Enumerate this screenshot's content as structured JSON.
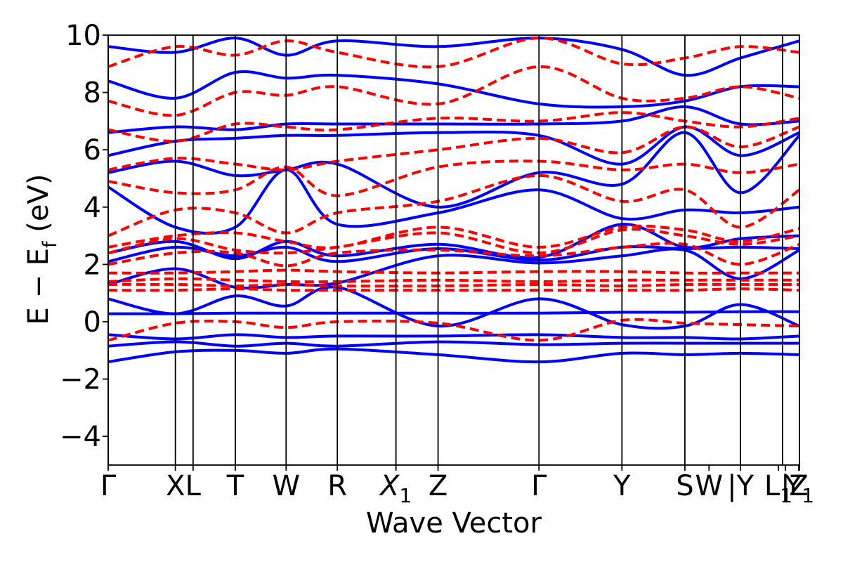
{
  "chart_data": {
    "type": "line",
    "title": "",
    "xlabel": "Wave Vector",
    "ylabel_main": "E − E",
    "ylabel_sub": "f",
    "ylabel_unit": " (eV)",
    "ylim": [
      -5,
      10
    ],
    "yticks": [
      -4,
      -2,
      0,
      2,
      4,
      6,
      8,
      10
    ],
    "ytick_labels": [
      "−4",
      "−2",
      "0",
      "2",
      "4",
      "6",
      "8",
      "10"
    ],
    "xlim": [
      0,
      1
    ],
    "kpoints": [
      {
        "label": "Γ",
        "x": 0.0,
        "sub": ""
      },
      {
        "label": "X",
        "x": 0.0972,
        "sub": ""
      },
      {
        "label": "L",
        "x": 0.1228,
        "sub": ""
      },
      {
        "label": "T",
        "x": 0.1839,
        "sub": ""
      },
      {
        "label": "W",
        "x": 0.2574,
        "sub": ""
      },
      {
        "label": "R",
        "x": 0.3315,
        "sub": ""
      },
      {
        "label": "X",
        "x": 0.4163,
        "sub": "1",
        "italic": true
      },
      {
        "label": "Z",
        "x": 0.4772,
        "sub": ""
      },
      {
        "label": "Γ",
        "x": 0.6232,
        "sub": ""
      },
      {
        "label": "Y",
        "x": 0.7432,
        "sub": ""
      },
      {
        "label": "S",
        "x": 0.8343,
        "sub": ""
      },
      {
        "label": "W",
        "x": 0.8692,
        "sub": ""
      },
      {
        "label": "|Y",
        "x": 0.9147,
        "sub": ""
      },
      {
        "label": "L",
        "x": 0.9695,
        "sub": "1"
      },
      {
        "label": "|",
        "x": 0.9796,
        "sub": ""
      },
      {
        "label": "Z",
        "x": 0.999,
        "sub": ""
      },
      {
        "label": "Y",
        "x": 1.0,
        "sub": "1"
      }
    ],
    "line_x": [
      0.0,
      0.0972,
      0.1228,
      0.1839,
      0.2574,
      0.3315,
      0.4163,
      0.4772,
      0.6232,
      0.7432,
      0.8343,
      0.9147,
      0.9756,
      1.0
    ],
    "series": [
      {
        "style": "solid",
        "color": "#0000ff",
        "x": [
          0.0,
          0.0972,
          0.1839,
          0.2574,
          0.3315,
          0.4772,
          0.6232,
          0.7432,
          0.8343,
          0.9147,
          1.0
        ],
        "bands": [
          [
            -1.4,
            -1.05,
            -1.0,
            -1.1,
            -0.95,
            -1.15,
            -1.4,
            -1.1,
            -1.15,
            -1.1,
            -1.15
          ],
          [
            -0.85,
            -0.7,
            -0.85,
            -0.75,
            -0.85,
            -0.7,
            -0.8,
            -0.75,
            -0.75,
            -0.75,
            -0.75
          ],
          [
            -0.45,
            -0.6,
            -0.45,
            -0.55,
            -0.5,
            -0.5,
            -0.45,
            -0.55,
            -0.55,
            -0.6,
            -0.5
          ],
          [
            0.28,
            0.28,
            0.3,
            0.3,
            0.3,
            0.3,
            0.3,
            0.33,
            0.33,
            0.35,
            0.35
          ],
          [
            0.8,
            0.28,
            0.9,
            0.55,
            1.2,
            -0.15,
            0.8,
            -0.1,
            -0.15,
            0.6,
            -0.15
          ],
          [
            1.3,
            1.85,
            1.2,
            1.3,
            1.35,
            2.3,
            2.05,
            2.3,
            2.5,
            1.5,
            2.5
          ],
          [
            2.1,
            2.6,
            2.3,
            2.6,
            2.1,
            2.55,
            2.15,
            2.6,
            2.55,
            2.6,
            2.55
          ],
          [
            2.4,
            2.8,
            2.2,
            2.8,
            2.3,
            2.7,
            2.25,
            3.4,
            2.6,
            2.9,
            3.0
          ],
          [
            4.7,
            3.3,
            3.3,
            5.3,
            3.4,
            3.8,
            4.6,
            3.6,
            3.9,
            3.8,
            4.0
          ],
          [
            5.2,
            5.6,
            5.1,
            5.3,
            5.5,
            4.0,
            5.2,
            4.8,
            6.6,
            4.5,
            6.5
          ],
          [
            5.8,
            6.3,
            6.4,
            6.5,
            6.5,
            6.6,
            6.5,
            5.5,
            6.8,
            5.8,
            6.6
          ],
          [
            6.6,
            6.8,
            6.7,
            6.9,
            6.9,
            6.9,
            6.9,
            7.0,
            7.5,
            6.9,
            7.0
          ],
          [
            8.4,
            7.8,
            8.7,
            8.5,
            8.6,
            8.3,
            7.6,
            7.5,
            7.7,
            8.2,
            8.2
          ],
          [
            9.6,
            9.4,
            9.9,
            9.3,
            9.8,
            9.6,
            9.9,
            9.5,
            8.6,
            9.2,
            9.8
          ]
        ]
      },
      {
        "style": "dashed",
        "color": "#ff0000",
        "x": [
          0.0,
          0.0972,
          0.1839,
          0.2574,
          0.3315,
          0.4772,
          0.6232,
          0.7432,
          0.8343,
          0.9147,
          1.0
        ],
        "bands": [
          [
            -0.65,
            -0.05,
            0.0,
            -0.2,
            0.0,
            -0.05,
            -0.65,
            0.05,
            -0.05,
            -0.1,
            -0.15
          ],
          [
            1.1,
            1.1,
            1.15,
            1.1,
            1.1,
            1.1,
            1.1,
            1.1,
            1.1,
            1.15,
            1.1
          ],
          [
            1.3,
            1.3,
            1.25,
            1.3,
            1.25,
            1.25,
            1.3,
            1.25,
            1.3,
            1.3,
            1.3
          ],
          [
            1.4,
            1.5,
            1.45,
            1.4,
            1.4,
            1.45,
            1.4,
            1.45,
            1.45,
            1.45,
            1.45
          ],
          [
            1.7,
            1.7,
            1.75,
            1.8,
            1.75,
            1.7,
            1.75,
            1.75,
            1.7,
            1.7,
            1.7
          ],
          [
            2.0,
            2.4,
            2.4,
            1.95,
            2.4,
            2.5,
            2.3,
            2.6,
            2.7,
            2.0,
            2.7
          ],
          [
            2.4,
            2.9,
            2.5,
            2.4,
            2.6,
            3.1,
            2.4,
            3.2,
            3.0,
            2.7,
            3.0
          ],
          [
            2.6,
            3.0,
            3.1,
            2.8,
            2.6,
            3.3,
            2.6,
            3.3,
            3.2,
            2.8,
            3.25
          ],
          [
            3.0,
            3.9,
            3.8,
            3.1,
            3.8,
            4.2,
            5.1,
            4.2,
            4.6,
            3.3,
            4.6
          ],
          [
            4.9,
            4.5,
            4.6,
            5.4,
            4.4,
            5.4,
            5.6,
            5.3,
            5.5,
            5.2,
            5.5
          ],
          [
            5.3,
            5.7,
            5.5,
            5.3,
            5.6,
            6.0,
            6.4,
            5.9,
            6.8,
            6.1,
            6.8
          ],
          [
            6.7,
            6.3,
            6.9,
            6.8,
            6.7,
            7.1,
            7.0,
            7.3,
            7.0,
            6.8,
            7.1
          ],
          [
            7.7,
            7.2,
            8.0,
            7.9,
            8.2,
            7.6,
            8.9,
            7.8,
            7.8,
            8.2,
            7.8
          ],
          [
            8.9,
            9.6,
            9.3,
            9.8,
            9.4,
            8.9,
            9.9,
            9.0,
            9.2,
            9.6,
            9.4
          ]
        ]
      }
    ]
  }
}
